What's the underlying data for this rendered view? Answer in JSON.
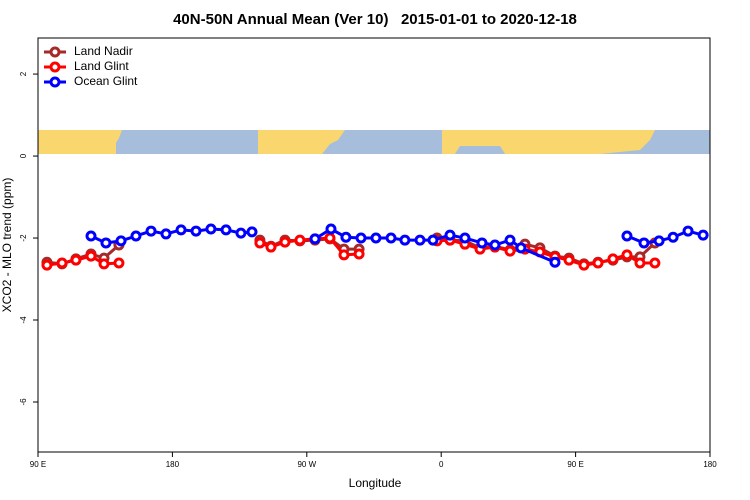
{
  "chart_data": {
    "type": "line",
    "title": "40N-50N Annual Mean (Ver 10)   2015-01-01 to 2020-12-18",
    "x_label": "Longitude",
    "y_label": "XCO2 - MLO trend (ppm)",
    "xlim": [
      90,
      540
    ],
    "xticks": [
      {
        "value": 90,
        "label": "90 E"
      },
      {
        "value": 180,
        "label": "180"
      },
      {
        "value": 270,
        "label": "90 W"
      },
      {
        "value": 360,
        "label": "0"
      },
      {
        "value": 450,
        "label": "90 E"
      },
      {
        "value": 540,
        "label": "180"
      }
    ],
    "ylim": [
      -7.22,
      2.88
    ],
    "yticks": [
      2,
      0,
      -2,
      -4,
      -6
    ],
    "legend": "top-left",
    "series": [
      {
        "name": "Land Nadir",
        "color": "#a52a2a",
        "x": [
          96.0,
          106.1,
          115.4,
          125.5,
          134.2,
          144.2,
          null,
          238.6,
          246.0,
          255.4,
          265.4,
          275.5,
          285.5,
          294.9,
          305.0,
          null,
          357.2,
          365.9,
          375.9,
          386.0,
          396.0,
          406.1,
          416.1,
          426.1,
          436.2,
          445.6,
          455.6,
          465.0,
          475.0,
          484.4,
          493.1,
          503.1
        ],
        "values": [
          -2.59,
          -2.63,
          -2.51,
          -2.39,
          -2.49,
          -2.17,
          null,
          -2.05,
          -2.2,
          -2.05,
          -2.07,
          -2.05,
          -2.02,
          -2.27,
          -2.27,
          null,
          -2.0,
          -2.05,
          -2.07,
          -2.24,
          -2.2,
          -2.29,
          -2.15,
          -2.24,
          -2.44,
          -2.49,
          -2.63,
          -2.59,
          -2.54,
          -2.46,
          -2.46,
          -2.12
        ]
      },
      {
        "name": "Land Glint",
        "color": "#ff0000",
        "x": [
          96.0,
          106.1,
          115.4,
          125.5,
          134.2,
          144.2,
          null,
          238.6,
          246.0,
          255.4,
          265.4,
          275.5,
          285.5,
          294.9,
          305.0,
          null,
          357.2,
          365.9,
          375.9,
          386.0,
          396.0,
          406.1,
          416.1,
          426.1,
          436.2,
          445.6,
          455.6,
          465.0,
          475.0,
          484.4,
          493.1,
          503.1
        ],
        "values": [
          -2.66,
          -2.61,
          -2.54,
          -2.44,
          -2.63,
          -2.61,
          null,
          -2.12,
          -2.22,
          -2.1,
          -2.05,
          -2.02,
          -2.0,
          -2.41,
          -2.39,
          null,
          -2.07,
          -2.05,
          -2.15,
          -2.27,
          -2.22,
          -2.32,
          -2.27,
          -2.34,
          -2.46,
          -2.54,
          -2.66,
          -2.61,
          -2.51,
          -2.41,
          -2.61,
          -2.61
        ]
      },
      {
        "name": "Ocean Glint",
        "color": "#0000ff",
        "x": [
          125.5,
          135.5,
          145.6,
          155.6,
          165.7,
          175.7,
          185.8,
          195.8,
          205.8,
          215.9,
          225.9,
          233.3,
          null,
          275.5,
          286.2,
          296.2,
          306.3,
          316.3,
          326.4,
          335.7,
          345.8,
          354.5,
          365.9,
          375.9,
          387.3,
          396.0,
          406.1,
          413.4,
          436.2,
          null,
          484.4,
          495.8,
          505.9,
          515.3,
          525.3,
          535.4
        ],
        "values": [
          -1.95,
          -2.12,
          -2.07,
          -1.95,
          -1.83,
          -1.9,
          -1.8,
          -1.83,
          -1.78,
          -1.8,
          -1.88,
          -1.85,
          null,
          -2.02,
          -1.78,
          -1.98,
          -2.0,
          -2.0,
          -2.0,
          -2.05,
          -2.05,
          -2.05,
          -1.93,
          -2.0,
          -2.12,
          -2.17,
          -2.05,
          -2.24,
          -2.59,
          null,
          -1.95,
          -2.12,
          -2.07,
          -1.98,
          -1.83,
          -1.93
        ]
      }
    ]
  }
}
